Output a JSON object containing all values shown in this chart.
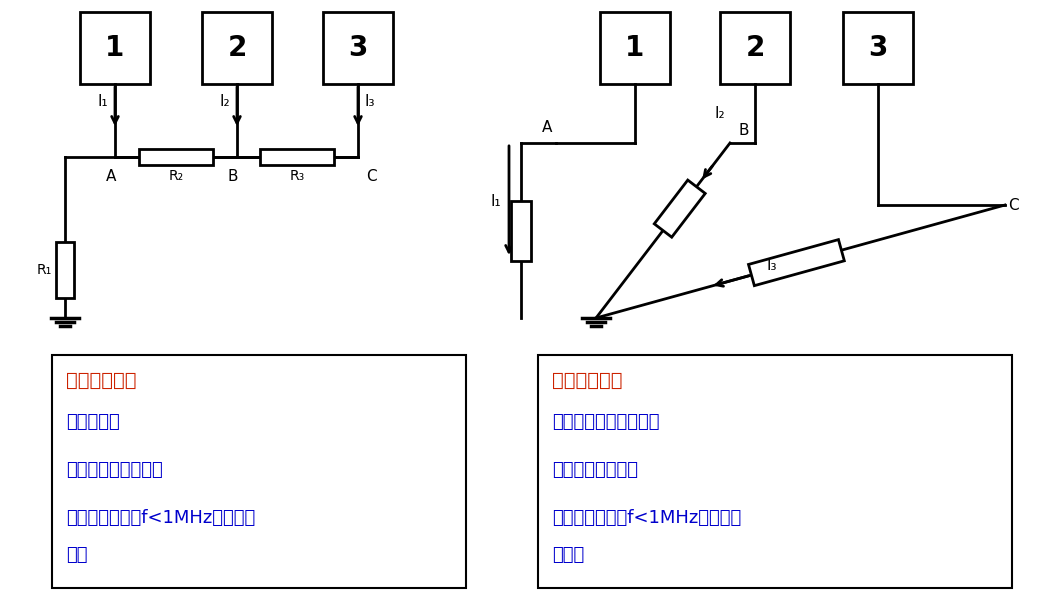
{
  "left_title": "串联单点接地",
  "left_adv": "优点：简单",
  "left_dis": "缺点：公共阻抗耦合",
  "left_app1": "适用于：低频（f<1MHz）、同类",
  "left_app2": "电路",
  "right_title": "并联单点接地",
  "right_adv": "优点：无公共阻抗耦合",
  "right_dis": "缺点：接地线过多",
  "right_app1": "适用于：低频（f<1MHz）、不同",
  "right_app2": "类电路",
  "title_color": "#cc2200",
  "text_color": "#0000cc",
  "black": "#000000",
  "white": "#ffffff"
}
